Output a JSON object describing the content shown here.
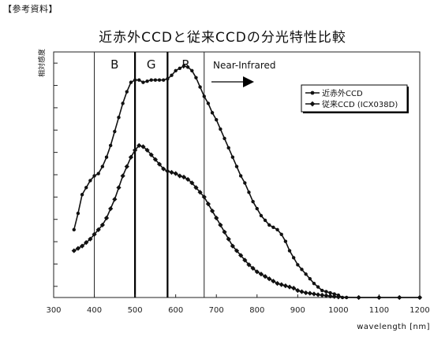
{
  "header": {
    "reference_label": "【参考資料】"
  },
  "chart_data": {
    "type": "line",
    "title": "近赤外CCDと従来CCDの分光特性比較",
    "xlabel": "wavelength [nm]",
    "ylabel": "相対感度",
    "xlim": [
      300,
      1200
    ],
    "x_ticks": [
      "300",
      "400",
      "500",
      "600",
      "700",
      "800",
      "900",
      "1000",
      "1100",
      "1200"
    ],
    "ylim": [
      0,
      1.05
    ],
    "y_tick_count": 11,
    "bands": [
      {
        "label": "B",
        "from": 400,
        "to": 500
      },
      {
        "label": "G",
        "from": 500,
        "to": 580
      },
      {
        "label": "R",
        "from": 580,
        "to": 670
      }
    ],
    "annotation": "Near-Infrared",
    "legend_position": "top-right",
    "series": [
      {
        "name": "近赤外CCD",
        "x": [
          350,
          360,
          370,
          380,
          390,
          400,
          410,
          420,
          430,
          440,
          450,
          460,
          470,
          480,
          490,
          500,
          510,
          520,
          530,
          540,
          550,
          560,
          570,
          580,
          590,
          600,
          610,
          620,
          630,
          640,
          650,
          660,
          670,
          680,
          690,
          700,
          710,
          720,
          730,
          740,
          750,
          760,
          770,
          780,
          790,
          800,
          810,
          820,
          830,
          840,
          850,
          860,
          870,
          880,
          890,
          900,
          910,
          920,
          930,
          940,
          950,
          960,
          970,
          980,
          990,
          1000,
          1010,
          1020,
          1050,
          1100,
          1150,
          1200
        ],
        "y": [
          0.29,
          0.36,
          0.44,
          0.47,
          0.5,
          0.52,
          0.53,
          0.56,
          0.6,
          0.65,
          0.71,
          0.77,
          0.83,
          0.88,
          0.92,
          0.93,
          0.93,
          0.92,
          0.925,
          0.93,
          0.93,
          0.93,
          0.93,
          0.935,
          0.95,
          0.97,
          0.98,
          0.99,
          0.985,
          0.97,
          0.94,
          0.9,
          0.86,
          0.83,
          0.79,
          0.76,
          0.72,
          0.68,
          0.64,
          0.6,
          0.56,
          0.52,
          0.49,
          0.45,
          0.41,
          0.38,
          0.35,
          0.33,
          0.31,
          0.3,
          0.29,
          0.27,
          0.24,
          0.2,
          0.17,
          0.14,
          0.12,
          0.1,
          0.08,
          0.06,
          0.045,
          0.03,
          0.025,
          0.02,
          0.015,
          0.01,
          0.0,
          0.0,
          0.0,
          0.0,
          0.0,
          0.0
        ]
      },
      {
        "name": "従来CCD (ICX038D)",
        "x": [
          350,
          360,
          370,
          380,
          390,
          400,
          410,
          420,
          430,
          440,
          450,
          460,
          470,
          480,
          490,
          500,
          510,
          520,
          530,
          540,
          550,
          560,
          570,
          580,
          590,
          600,
          610,
          620,
          630,
          640,
          650,
          660,
          670,
          680,
          690,
          700,
          710,
          720,
          730,
          740,
          750,
          760,
          770,
          780,
          790,
          800,
          810,
          820,
          830,
          840,
          850,
          860,
          870,
          880,
          890,
          900,
          910,
          920,
          930,
          940,
          950,
          960,
          970,
          980,
          990,
          1000,
          1050,
          1100,
          1150,
          1200
        ],
        "y": [
          0.2,
          0.21,
          0.22,
          0.235,
          0.25,
          0.27,
          0.29,
          0.31,
          0.34,
          0.38,
          0.42,
          0.47,
          0.52,
          0.56,
          0.6,
          0.63,
          0.65,
          0.645,
          0.63,
          0.61,
          0.59,
          0.57,
          0.55,
          0.54,
          0.535,
          0.53,
          0.52,
          0.515,
          0.505,
          0.49,
          0.47,
          0.45,
          0.43,
          0.4,
          0.37,
          0.34,
          0.31,
          0.28,
          0.25,
          0.22,
          0.2,
          0.18,
          0.16,
          0.14,
          0.125,
          0.11,
          0.1,
          0.09,
          0.08,
          0.07,
          0.06,
          0.055,
          0.05,
          0.045,
          0.04,
          0.03,
          0.025,
          0.02,
          0.018,
          0.015,
          0.012,
          0.01,
          0.008,
          0.006,
          0.004,
          0.002,
          0.0,
          0.0,
          0.0,
          0.0
        ]
      }
    ],
    "colors": {
      "line": "#111111",
      "frame": "#222222"
    }
  }
}
